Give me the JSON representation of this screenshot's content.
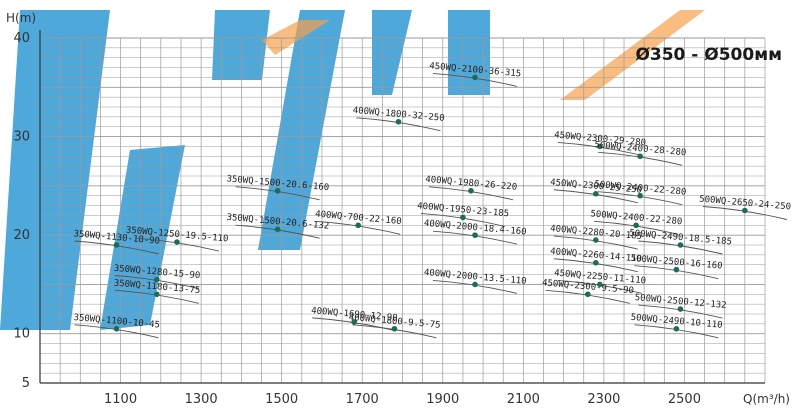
{
  "chart_data": {
    "type": "scatter",
    "title": "Ø350 - Ø500мм",
    "xlabel": "Q(m³/h)",
    "ylabel": "H(m)",
    "xlim": [
      900,
      2700
    ],
    "ylim": [
      5,
      40
    ],
    "x_ticks": [
      1100,
      1300,
      1500,
      1700,
      1900,
      2100,
      2300,
      2500
    ],
    "x_tick_labels": [
      "1100",
      "1300",
      "1500",
      "1700",
      "1900",
      "2100",
      "2300",
      "2500"
    ],
    "y_ticks": [
      5,
      10,
      20,
      30,
      40
    ],
    "y_tick_labels": [
      "5",
      "10",
      "20",
      "30",
      "40"
    ],
    "grid": true,
    "colors": {
      "point": "#1f6b5a",
      "curve": "#555555",
      "grid": "#9a9a9a",
      "axis": "#333333",
      "watermark_blue": "#1e8fd0",
      "watermark_orange": "#f7a04b"
    },
    "points": [
      {
        "label": "450WQ-2100-36-315",
        "x": 1980,
        "y": 36.0
      },
      {
        "label": "400WQ-1800-32-250",
        "x": 1790,
        "y": 31.5
      },
      {
        "label": "450WQ-2300-29-280",
        "x": 2290,
        "y": 29.0
      },
      {
        "label": "500WQ-2400-28-280",
        "x": 2390,
        "y": 28.0
      },
      {
        "label": "350WQ-1500-20.6-160",
        "x": 1490,
        "y": 24.5
      },
      {
        "label": "400WQ-1980-26-220",
        "x": 1970,
        "y": 24.5
      },
      {
        "label": "450WQ-2300-25-250",
        "x": 2280,
        "y": 24.2
      },
      {
        "label": "500WQ-2400-22-280",
        "x": 2390,
        "y": 24.0
      },
      {
        "label": "500WQ-2650-24-250",
        "x": 2650,
        "y": 22.5
      },
      {
        "label": "400WQ-1950-23-185",
        "x": 1950,
        "y": 21.8
      },
      {
        "label": "500WQ-2400-22-280",
        "x": 2380,
        "y": 21.0
      },
      {
        "label": "350WQ-1500-20.6-132",
        "x": 1490,
        "y": 20.6
      },
      {
        "label": "400WQ-700-22-160",
        "x": 1690,
        "y": 21.0
      },
      {
        "label": "400WQ-2000-18.4-160",
        "x": 1980,
        "y": 20.0
      },
      {
        "label": "400WQ-2280-20-185",
        "x": 2280,
        "y": 19.5
      },
      {
        "label": "500WQ-2490-18.5-185",
        "x": 2490,
        "y": 19.0
      },
      {
        "label": "350WQ-1130-18-90",
        "x": 1090,
        "y": 19.0
      },
      {
        "label": "350WQ-1250-19.5-110",
        "x": 1240,
        "y": 19.3
      },
      {
        "label": "400WQ-2260-14-110",
        "x": 2280,
        "y": 17.2
      },
      {
        "label": "500WQ-2500-16-160",
        "x": 2480,
        "y": 16.5
      },
      {
        "label": "350WQ-1280-15-90",
        "x": 1190,
        "y": 15.5
      },
      {
        "label": "400WQ-2000-13.5-110",
        "x": 1980,
        "y": 15.0
      },
      {
        "label": "450WQ-2250-11-110",
        "x": 2290,
        "y": 15.0
      },
      {
        "label": "350WQ-1180-13-75",
        "x": 1190,
        "y": 14.0
      },
      {
        "label": "450WQ-2300-9.5-90",
        "x": 2260,
        "y": 14.0
      },
      {
        "label": "500WQ-2500-12-132",
        "x": 2490,
        "y": 12.5
      },
      {
        "label": "400WQ-1690-12-90",
        "x": 1680,
        "y": 11.2
      },
      {
        "label": "400WQ-1800-9.5-75",
        "x": 1780,
        "y": 10.5
      },
      {
        "label": "500WQ-2490-10-110",
        "x": 2480,
        "y": 10.5
      },
      {
        "label": "350WQ-1100-10-45",
        "x": 1090,
        "y": 10.5
      }
    ]
  }
}
